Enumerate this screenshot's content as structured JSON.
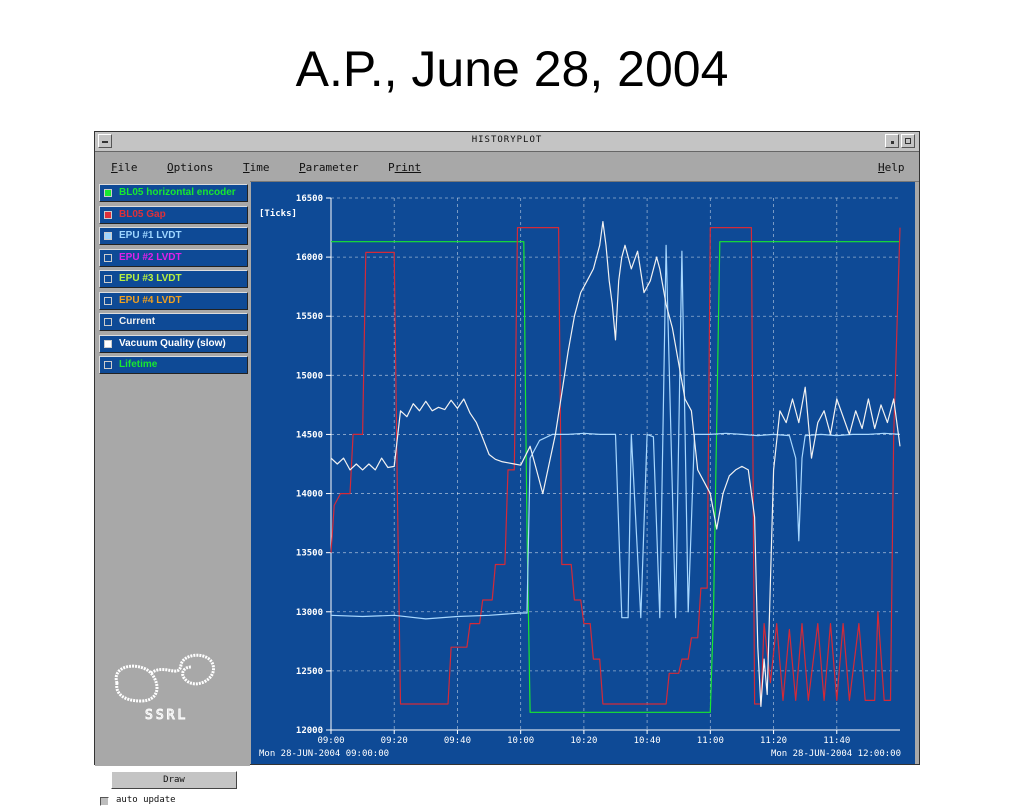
{
  "slide": {
    "title": "A.P., June 28, 2004"
  },
  "window": {
    "title": "HISTORYPLOT"
  },
  "menu": [
    {
      "key": "file",
      "first": "F",
      "rest": "ile"
    },
    {
      "key": "options",
      "first": "O",
      "rest": "ptions"
    },
    {
      "key": "time",
      "first": "T",
      "rest": "ime"
    },
    {
      "key": "parameter",
      "first": "P",
      "rest": "arameter"
    },
    {
      "key": "print",
      "first": "P",
      "rest": "rint"
    },
    {
      "key": "help",
      "first": "H",
      "rest": "elp"
    }
  ],
  "legend": [
    {
      "label": "BL05 horizontal encoder",
      "color": "#18e830",
      "checked": true
    },
    {
      "label": "BL05 Gap",
      "color": "#e0303a",
      "checked": true
    },
    {
      "label": "EPU #1 LVDT",
      "color": "#9fd6ff",
      "checked": true
    },
    {
      "label": "EPU #2 LVDT",
      "color": "#e020e8",
      "checked": false
    },
    {
      "label": "EPU #3 LVDT",
      "color": "#b8f040",
      "checked": false
    },
    {
      "label": "EPU #4 LVDT",
      "color": "#f0a020",
      "checked": false
    },
    {
      "label": "Current",
      "color": "#f0f0f0",
      "checked": false
    },
    {
      "label": "Vacuum Quality (slow)",
      "color": "#ffffff",
      "checked": true
    },
    {
      "label": "Lifetime",
      "color": "#18e830",
      "checked": false
    }
  ],
  "logo": {
    "text": "SSRL"
  },
  "controls": {
    "draw_label": "Draw",
    "auto_update_label": "auto update"
  },
  "chart_data": {
    "type": "line",
    "ylabel": "[Ticks]",
    "ylim": [
      12000,
      16500
    ],
    "yticks": [
      "16500",
      "16000",
      "15500",
      "15000",
      "14500",
      "14000",
      "13500",
      "13000",
      "12500",
      "12000"
    ],
    "xlim_minutes": [
      0,
      180
    ],
    "xticks": [
      "09:00",
      "09:20",
      "09:40",
      "10:00",
      "10:20",
      "10:40",
      "11:00",
      "11:20",
      "11:40"
    ],
    "start_label": "Mon 28-JUN-2004 09:00:00",
    "end_label": "Mon 28-JUN-2004 12:00:00",
    "grid": true,
    "series": [
      {
        "name": "BL05 horizontal encoder",
        "color": "#18e830",
        "points": [
          [
            0,
            16130
          ],
          [
            60,
            16130
          ],
          [
            61,
            16130
          ],
          [
            62,
            13700
          ],
          [
            63,
            12150
          ],
          [
            120,
            12150
          ],
          [
            121,
            13000
          ],
          [
            123,
            16130
          ],
          [
            180,
            16130
          ]
        ]
      },
      {
        "name": "BL05 Gap",
        "color": "#d42a38",
        "points": [
          [
            0,
            13500
          ],
          [
            1,
            13900
          ],
          [
            3,
            14000
          ],
          [
            6,
            14000
          ],
          [
            7,
            14500
          ],
          [
            10,
            14500
          ],
          [
            11,
            16040
          ],
          [
            20,
            16040
          ],
          [
            21,
            14000
          ],
          [
            22,
            12220
          ],
          [
            37,
            12220
          ],
          [
            38,
            12700
          ],
          [
            43,
            12700
          ],
          [
            44,
            12900
          ],
          [
            47,
            12900
          ],
          [
            48,
            13100
          ],
          [
            51,
            13100
          ],
          [
            52,
            13400
          ],
          [
            55,
            13400
          ],
          [
            56,
            14200
          ],
          [
            58,
            14200
          ],
          [
            59,
            16250
          ],
          [
            72,
            16250
          ],
          [
            73,
            13400
          ],
          [
            76,
            13400
          ],
          [
            77,
            13100
          ],
          [
            79,
            13100
          ],
          [
            80,
            12900
          ],
          [
            82,
            12900
          ],
          [
            83,
            12600
          ],
          [
            85,
            12600
          ],
          [
            86,
            12220
          ],
          [
            106,
            12220
          ],
          [
            107,
            12480
          ],
          [
            110,
            12480
          ],
          [
            111,
            12600
          ],
          [
            113,
            12600
          ],
          [
            114,
            12780
          ],
          [
            116,
            12780
          ],
          [
            117,
            13200
          ],
          [
            119,
            13200
          ],
          [
            120,
            16250
          ],
          [
            133,
            16250
          ],
          [
            134,
            12220
          ],
          [
            136,
            12220
          ],
          [
            137,
            12900
          ],
          [
            139,
            12400
          ],
          [
            141,
            12900
          ],
          [
            143,
            12250
          ],
          [
            145,
            12850
          ],
          [
            147,
            12250
          ],
          [
            149,
            12900
          ],
          [
            151,
            12250
          ],
          [
            154,
            12900
          ],
          [
            156,
            12250
          ],
          [
            158,
            12900
          ],
          [
            160,
            12250
          ],
          [
            162,
            12900
          ],
          [
            164,
            12250
          ],
          [
            167,
            12900
          ],
          [
            169,
            12250
          ],
          [
            172,
            12250
          ],
          [
            173,
            13000
          ],
          [
            175,
            12250
          ],
          [
            177,
            12250
          ],
          [
            178,
            14500
          ],
          [
            180,
            16250
          ]
        ]
      },
      {
        "name": "EPU #1 LVDT",
        "color": "#a8d8ff",
        "points": [
          [
            0,
            12970
          ],
          [
            10,
            12960
          ],
          [
            20,
            12970
          ],
          [
            30,
            12940
          ],
          [
            40,
            12960
          ],
          [
            50,
            12970
          ],
          [
            60,
            12990
          ],
          [
            62,
            12990
          ],
          [
            63,
            14300
          ],
          [
            66,
            14450
          ],
          [
            70,
            14500
          ],
          [
            75,
            14500
          ],
          [
            80,
            14510
          ],
          [
            85,
            14500
          ],
          [
            90,
            14500
          ],
          [
            92,
            12950
          ],
          [
            94,
            12950
          ],
          [
            95,
            14500
          ],
          [
            98,
            12950
          ],
          [
            100,
            14500
          ],
          [
            102,
            14480
          ],
          [
            104,
            12950
          ],
          [
            106,
            16100
          ],
          [
            109,
            12950
          ],
          [
            111,
            16050
          ],
          [
            113,
            13000
          ],
          [
            115,
            14500
          ],
          [
            120,
            14500
          ],
          [
            125,
            14510
          ],
          [
            130,
            14500
          ],
          [
            135,
            14490
          ],
          [
            140,
            14500
          ],
          [
            145,
            14490
          ],
          [
            147,
            14300
          ],
          [
            148,
            13600
          ],
          [
            149,
            14300
          ],
          [
            150,
            14490
          ],
          [
            155,
            14500
          ],
          [
            160,
            14490
          ],
          [
            165,
            14500
          ],
          [
            170,
            14500
          ],
          [
            175,
            14510
          ],
          [
            180,
            14500
          ]
        ]
      },
      {
        "name": "Vacuum Quality (slow)",
        "color": "#f2f2f2",
        "points": [
          [
            0,
            14300
          ],
          [
            2,
            14250
          ],
          [
            4,
            14300
          ],
          [
            6,
            14200
          ],
          [
            8,
            14250
          ],
          [
            10,
            14200
          ],
          [
            12,
            14250
          ],
          [
            14,
            14200
          ],
          [
            16,
            14300
          ],
          [
            18,
            14220
          ],
          [
            20,
            14230
          ],
          [
            22,
            14700
          ],
          [
            24,
            14650
          ],
          [
            26,
            14760
          ],
          [
            28,
            14700
          ],
          [
            30,
            14780
          ],
          [
            32,
            14700
          ],
          [
            34,
            14730
          ],
          [
            36,
            14710
          ],
          [
            38,
            14790
          ],
          [
            40,
            14720
          ],
          [
            42,
            14800
          ],
          [
            44,
            14680
          ],
          [
            46,
            14600
          ],
          [
            48,
            14470
          ],
          [
            50,
            14330
          ],
          [
            52,
            14290
          ],
          [
            54,
            14270
          ],
          [
            56,
            14260
          ],
          [
            58,
            14250
          ],
          [
            60,
            14240
          ],
          [
            63,
            14400
          ],
          [
            65,
            14200
          ],
          [
            67,
            14000
          ],
          [
            69,
            14250
          ],
          [
            71,
            14500
          ],
          [
            73,
            14850
          ],
          [
            75,
            15200
          ],
          [
            77,
            15500
          ],
          [
            79,
            15700
          ],
          [
            81,
            15800
          ],
          [
            83,
            15900
          ],
          [
            85,
            16100
          ],
          [
            86,
            16300
          ],
          [
            87,
            16100
          ],
          [
            88,
            15800
          ],
          [
            89,
            15600
          ],
          [
            90,
            15300
          ],
          [
            91,
            15800
          ],
          [
            92,
            16000
          ],
          [
            93,
            16100
          ],
          [
            95,
            15900
          ],
          [
            97,
            16050
          ],
          [
            99,
            15700
          ],
          [
            101,
            15800
          ],
          [
            103,
            16000
          ],
          [
            104,
            15900
          ],
          [
            106,
            15600
          ],
          [
            108,
            15400
          ],
          [
            110,
            15100
          ],
          [
            112,
            14800
          ],
          [
            114,
            14700
          ],
          [
            116,
            14200
          ],
          [
            118,
            14100
          ],
          [
            120,
            14000
          ],
          [
            122,
            13700
          ],
          [
            124,
            14000
          ],
          [
            126,
            14150
          ],
          [
            128,
            14200
          ],
          [
            130,
            14230
          ],
          [
            132,
            14200
          ],
          [
            134,
            13800
          ],
          [
            135,
            12700
          ],
          [
            136,
            12200
          ],
          [
            137,
            12600
          ],
          [
            138,
            12300
          ],
          [
            140,
            14200
          ],
          [
            142,
            14700
          ],
          [
            144,
            14600
          ],
          [
            146,
            14800
          ],
          [
            148,
            14600
          ],
          [
            150,
            14900
          ],
          [
            152,
            14300
          ],
          [
            154,
            14600
          ],
          [
            156,
            14700
          ],
          [
            158,
            14500
          ],
          [
            160,
            14800
          ],
          [
            162,
            14650
          ],
          [
            164,
            14500
          ],
          [
            166,
            14700
          ],
          [
            168,
            14550
          ],
          [
            170,
            14800
          ],
          [
            172,
            14550
          ],
          [
            174,
            14750
          ],
          [
            176,
            14600
          ],
          [
            178,
            14800
          ],
          [
            180,
            14400
          ]
        ]
      }
    ]
  }
}
